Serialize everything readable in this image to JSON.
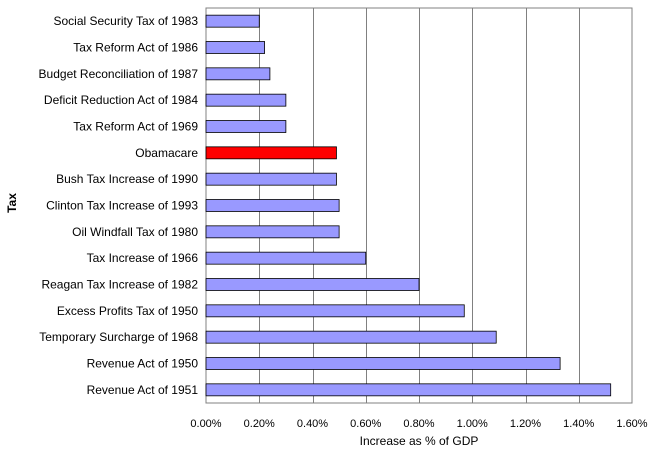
{
  "chart_data": {
    "type": "bar",
    "orientation": "horizontal",
    "xlabel": "Increase as % of GDP",
    "ylabel": "Tax",
    "xlim": [
      0,
      1.6
    ],
    "x_ticks": [
      "0.00%",
      "0.20%",
      "0.40%",
      "0.60%",
      "0.80%",
      "1.00%",
      "1.20%",
      "1.40%",
      "1.60%"
    ],
    "grid": "vertical gridlines",
    "legend": "none",
    "categories": [
      "Social Security Tax of 1983",
      "Tax Reform Act of 1986",
      "Budget Reconciliation of 1987",
      "Deficit Reduction Act of 1984",
      "Tax Reform Act of 1969",
      "Obamacare",
      "Bush Tax Increase of 1990",
      "Clinton Tax Increase of 1993",
      "Oil Windfall Tax of 1980",
      "Tax Increase of 1966",
      "Reagan Tax Increase of 1982",
      "Excess Profits Tax of 1950",
      "Temporary Surcharge of 1968",
      "Revenue Act of 1950",
      "Revenue Act of 1951"
    ],
    "values": [
      0.2,
      0.22,
      0.24,
      0.3,
      0.3,
      0.49,
      0.49,
      0.5,
      0.5,
      0.6,
      0.8,
      0.97,
      1.09,
      1.33,
      1.52
    ],
    "bar_colors": [
      "#9999ff",
      "#9999ff",
      "#9999ff",
      "#9999ff",
      "#9999ff",
      "#ff0000",
      "#9999ff",
      "#9999ff",
      "#9999ff",
      "#9999ff",
      "#9999ff",
      "#9999ff",
      "#9999ff",
      "#9999ff",
      "#9999ff"
    ],
    "colors": {
      "default_bar": "#9999ff",
      "highlight_bar": "#ff0000",
      "gridline": "#808080",
      "plot_border": "#808080"
    }
  }
}
